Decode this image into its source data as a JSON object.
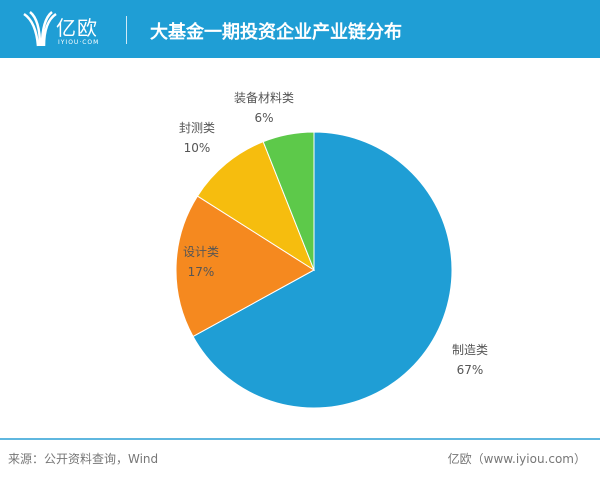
{
  "header": {
    "logo_text": "亿欧",
    "logo_sub": "IYIOU·COM",
    "title": "大基金一期投资企业产业链分布"
  },
  "chart_data": {
    "type": "pie",
    "title": "大基金一期投资企业产业链分布",
    "slices": [
      {
        "label": "制造类",
        "value": 67,
        "display": "67%",
        "color": "#1f9ed5"
      },
      {
        "label": "设计类",
        "value": 17,
        "display": "17%",
        "color": "#f5891f"
      },
      {
        "label": "封测类",
        "value": 10,
        "display": "10%",
        "color": "#f6bd0e"
      },
      {
        "label": "装备材料类",
        "value": 6,
        "display": "6%",
        "color": "#5dc94a"
      }
    ]
  },
  "footer": {
    "source": "来源：公开资料查询，Wind",
    "credit": "亿欧（www.iyiou.com）"
  }
}
